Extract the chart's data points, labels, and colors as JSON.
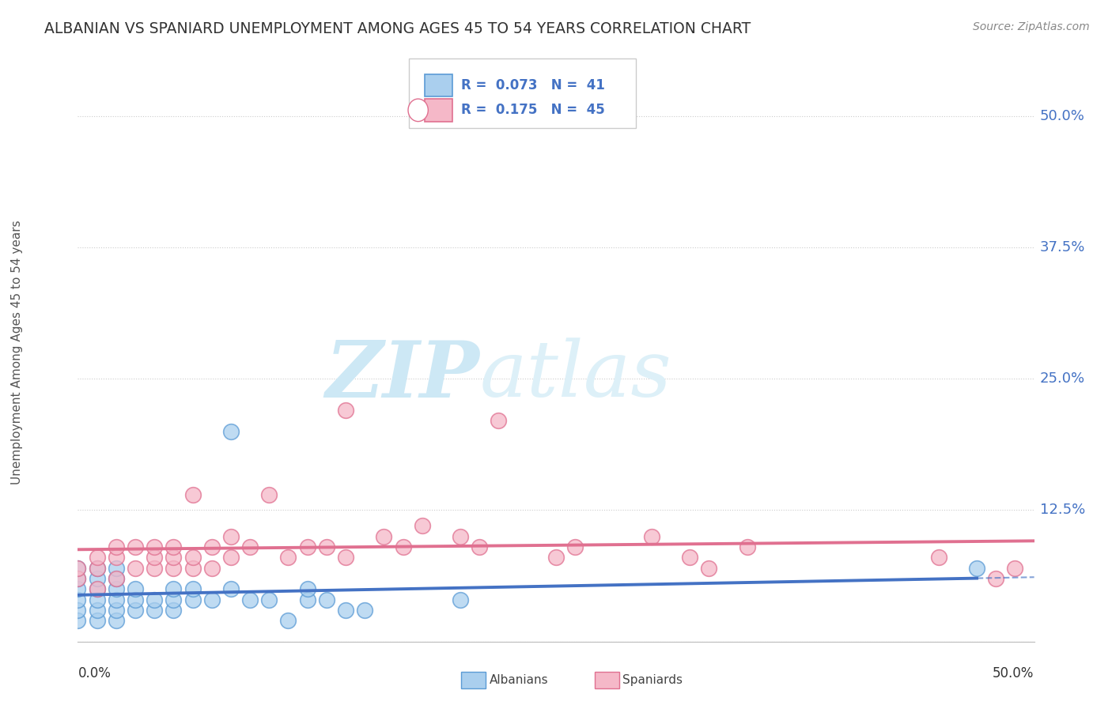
{
  "title": "ALBANIAN VS SPANIARD UNEMPLOYMENT AMONG AGES 45 TO 54 YEARS CORRELATION CHART",
  "source": "Source: ZipAtlas.com",
  "ylabel": "Unemployment Among Ages 45 to 54 years",
  "xlim": [
    0.0,
    0.5
  ],
  "ylim": [
    0.0,
    0.55
  ],
  "albanian_R": 0.073,
  "albanian_N": 41,
  "spaniard_R": 0.175,
  "spaniard_N": 45,
  "albanian_color": "#aacfee",
  "albanian_edge": "#5b9bd5",
  "spaniard_color": "#f5b8c8",
  "spaniard_edge": "#e07090",
  "trend_albanian_color": "#4472c4",
  "trend_spaniard_color": "#e07090",
  "watermark_zip_color": "#cde8f5",
  "watermark_atlas_color": "#ddf0f8",
  "background_color": "#ffffff",
  "grid_color": "#cccccc",
  "ytick_color": "#4472c4",
  "albanian_x": [
    0.0,
    0.0,
    0.0,
    0.0,
    0.0,
    0.0,
    0.01,
    0.01,
    0.01,
    0.01,
    0.01,
    0.01,
    0.02,
    0.02,
    0.02,
    0.02,
    0.02,
    0.02,
    0.03,
    0.03,
    0.03,
    0.04,
    0.04,
    0.05,
    0.05,
    0.05,
    0.06,
    0.06,
    0.07,
    0.08,
    0.08,
    0.09,
    0.1,
    0.11,
    0.12,
    0.12,
    0.13,
    0.14,
    0.15,
    0.2,
    0.47
  ],
  "albanian_y": [
    0.02,
    0.03,
    0.04,
    0.05,
    0.06,
    0.07,
    0.02,
    0.03,
    0.04,
    0.05,
    0.06,
    0.07,
    0.02,
    0.03,
    0.04,
    0.05,
    0.06,
    0.07,
    0.03,
    0.04,
    0.05,
    0.03,
    0.04,
    0.03,
    0.04,
    0.05,
    0.04,
    0.05,
    0.04,
    0.05,
    0.2,
    0.04,
    0.04,
    0.02,
    0.04,
    0.05,
    0.04,
    0.03,
    0.03,
    0.04,
    0.07
  ],
  "spaniard_x": [
    0.0,
    0.0,
    0.01,
    0.01,
    0.01,
    0.02,
    0.02,
    0.02,
    0.03,
    0.03,
    0.04,
    0.04,
    0.04,
    0.05,
    0.05,
    0.05,
    0.06,
    0.06,
    0.06,
    0.07,
    0.07,
    0.08,
    0.08,
    0.09,
    0.1,
    0.11,
    0.12,
    0.13,
    0.14,
    0.14,
    0.16,
    0.17,
    0.18,
    0.2,
    0.21,
    0.22,
    0.25,
    0.26,
    0.3,
    0.32,
    0.33,
    0.35,
    0.45,
    0.48,
    0.49
  ],
  "spaniard_y": [
    0.06,
    0.07,
    0.05,
    0.07,
    0.08,
    0.06,
    0.08,
    0.09,
    0.07,
    0.09,
    0.07,
    0.08,
    0.09,
    0.07,
    0.08,
    0.09,
    0.07,
    0.08,
    0.14,
    0.07,
    0.09,
    0.08,
    0.1,
    0.09,
    0.14,
    0.08,
    0.09,
    0.09,
    0.08,
    0.22,
    0.1,
    0.09,
    0.11,
    0.1,
    0.09,
    0.21,
    0.08,
    0.09,
    0.1,
    0.08,
    0.07,
    0.09,
    0.08,
    0.06,
    0.07
  ]
}
